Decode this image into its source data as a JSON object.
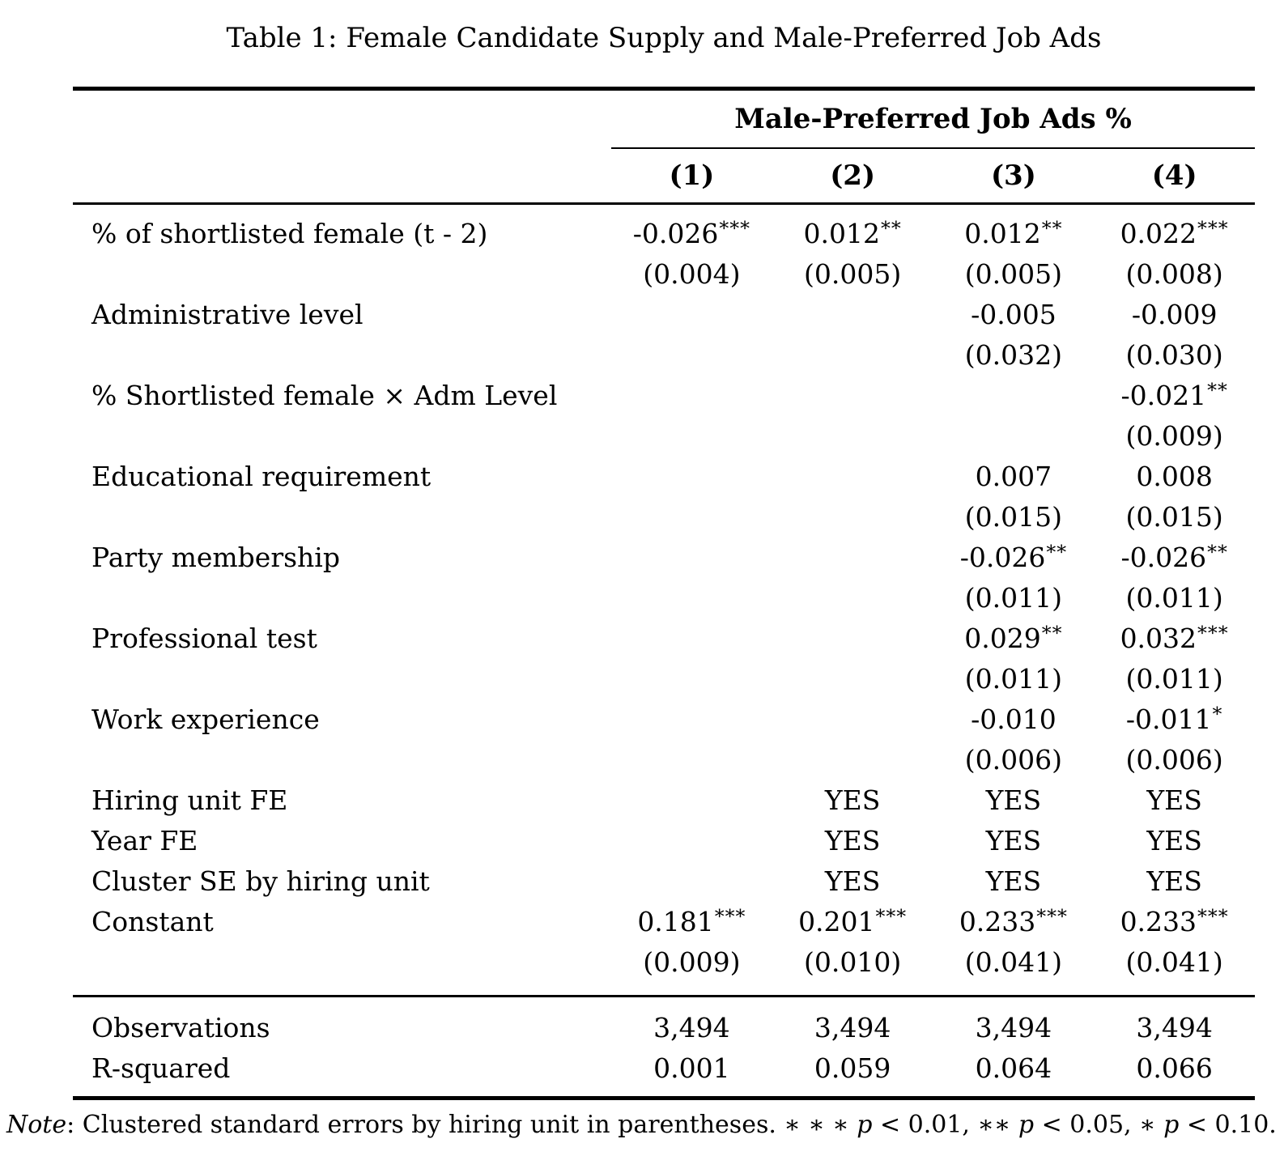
{
  "title": "Table 1: Female Candidate Supply and Male-Preferred Job Ads",
  "header": {
    "dep_var_label": "Male-Preferred Job Ads %",
    "columns": [
      "(1)",
      "(2)",
      "(3)",
      "(4)"
    ]
  },
  "rows": [
    {
      "label": "% of shortlisted female (t - 2)",
      "coefs": [
        "-0.026***",
        "0.012**",
        "0.012**",
        "0.022***"
      ],
      "ses": [
        "(0.004)",
        "(0.005)",
        "(0.005)",
        "(0.008)"
      ]
    },
    {
      "label": "Administrative level",
      "coefs": [
        "",
        "",
        "-0.005",
        "-0.009"
      ],
      "ses": [
        "",
        "",
        "(0.032)",
        "(0.030)"
      ]
    },
    {
      "label": "% Shortlisted female × Adm Level",
      "coefs": [
        "",
        "",
        "",
        "-0.021**"
      ],
      "ses": [
        "",
        "",
        "",
        "(0.009)"
      ]
    },
    {
      "label": "Educational requirement",
      "coefs": [
        "",
        "",
        "0.007",
        "0.008"
      ],
      "ses": [
        "",
        "",
        "(0.015)",
        "(0.015)"
      ]
    },
    {
      "label": "Party membership",
      "coefs": [
        "",
        "",
        "-0.026**",
        "-0.026**"
      ],
      "ses": [
        "",
        "",
        "(0.011)",
        "(0.011)"
      ]
    },
    {
      "label": "Professional test",
      "coefs": [
        "",
        "",
        "0.029**",
        "0.032***"
      ],
      "ses": [
        "",
        "",
        "(0.011)",
        "(0.011)"
      ]
    },
    {
      "label": "Work experience",
      "coefs": [
        "",
        "",
        "-0.010",
        "-0.011*"
      ],
      "ses": [
        "",
        "",
        "(0.006)",
        "(0.006)"
      ]
    },
    {
      "label": "Hiring unit FE",
      "coefs": [
        "",
        "YES",
        "YES",
        "YES"
      ]
    },
    {
      "label": "Year FE",
      "coefs": [
        "",
        "YES",
        "YES",
        "YES"
      ]
    },
    {
      "label": "Cluster SE by hiring unit",
      "coefs": [
        "",
        "YES",
        "YES",
        "YES"
      ]
    },
    {
      "label": "Constant",
      "coefs": [
        "0.181***",
        "0.201***",
        "0.233***",
        "0.233***"
      ],
      "ses": [
        "(0.009)",
        "(0.010)",
        "(0.041)",
        "(0.041)"
      ]
    }
  ],
  "stats": [
    {
      "label": "Observations",
      "values": [
        "3,494",
        "3,494",
        "3,494",
        "3,494"
      ]
    },
    {
      "label": "R-squared",
      "values": [
        "0.001",
        "0.059",
        "0.064",
        "0.066"
      ]
    }
  ],
  "note": {
    "segments": [
      {
        "text": "Note",
        "italic": true
      },
      {
        "text": ": Clustered standard errors by hiring unit in parentheses. ∗ ∗ ∗ ",
        "italic": false
      },
      {
        "text": "p",
        "italic": true
      },
      {
        "text": " < 0.01, ∗∗ ",
        "italic": false
      },
      {
        "text": "p",
        "italic": true
      },
      {
        "text": " < 0.05, ∗ ",
        "italic": false
      },
      {
        "text": "p",
        "italic": true
      },
      {
        "text": " < 0.10.",
        "italic": false
      }
    ]
  },
  "colors": {
    "text": "#000000",
    "background": "#ffffff",
    "rule": "#000000"
  }
}
